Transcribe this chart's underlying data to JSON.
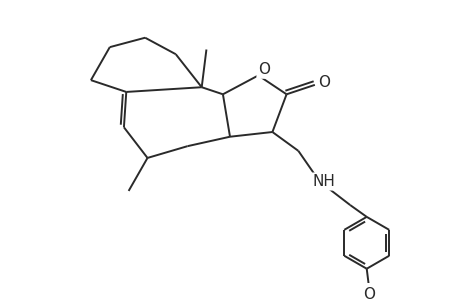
{
  "background_color": "#ffffff",
  "line_color": "#2a2a2a",
  "line_width": 1.4,
  "font_size": 10,
  "figsize": [
    4.6,
    3.0
  ],
  "dpi": 100,
  "xlim": [
    0,
    9
  ],
  "ylim": [
    0,
    6
  ]
}
